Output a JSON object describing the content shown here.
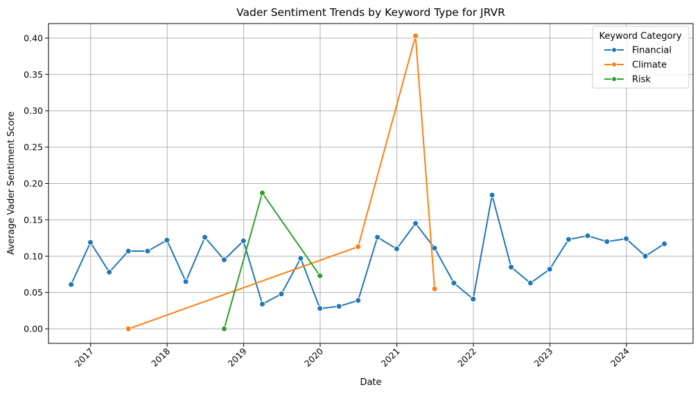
{
  "chart_data": {
    "type": "line",
    "title": "Vader Sentiment Trends by Keyword Type for JRVR",
    "xlabel": "Date",
    "ylabel": "Average Vader Sentiment Score",
    "xlim": [
      "2016-06-14",
      "2024-11-14"
    ],
    "ylim": [
      -0.02,
      0.42
    ],
    "x_ticks": [
      {
        "date": "2017-01-01",
        "label": "2017"
      },
      {
        "date": "2018-01-01",
        "label": "2018"
      },
      {
        "date": "2019-01-01",
        "label": "2019"
      },
      {
        "date": "2020-01-01",
        "label": "2020"
      },
      {
        "date": "2021-01-01",
        "label": "2021"
      },
      {
        "date": "2022-01-01",
        "label": "2022"
      },
      {
        "date": "2023-01-01",
        "label": "2023"
      },
      {
        "date": "2024-01-01",
        "label": "2024"
      }
    ],
    "y_ticks": [
      {
        "value": 0.0,
        "label": "0.00"
      },
      {
        "value": 0.05,
        "label": "0.05"
      },
      {
        "value": 0.1,
        "label": "0.10"
      },
      {
        "value": 0.15,
        "label": "0.15"
      },
      {
        "value": 0.2,
        "label": "0.20"
      },
      {
        "value": 0.25,
        "label": "0.25"
      },
      {
        "value": 0.3,
        "label": "0.30"
      },
      {
        "value": 0.35,
        "label": "0.35"
      },
      {
        "value": 0.4,
        "label": "0.40"
      }
    ],
    "grid": true,
    "legend": {
      "title": "Keyword Category",
      "position": "top-right"
    },
    "series": [
      {
        "name": "Financial",
        "color": "#1f77b4",
        "points": [
          {
            "x": "2016-09-30",
            "y": 0.061
          },
          {
            "x": "2016-12-31",
            "y": 0.119
          },
          {
            "x": "2017-03-31",
            "y": 0.078
          },
          {
            "x": "2017-06-30",
            "y": 0.107
          },
          {
            "x": "2017-09-30",
            "y": 0.107
          },
          {
            "x": "2017-12-31",
            "y": 0.122
          },
          {
            "x": "2018-03-31",
            "y": 0.065
          },
          {
            "x": "2018-06-30",
            "y": 0.126
          },
          {
            "x": "2018-09-30",
            "y": 0.095
          },
          {
            "x": "2018-12-31",
            "y": 0.121
          },
          {
            "x": "2019-03-31",
            "y": 0.034
          },
          {
            "x": "2019-06-30",
            "y": 0.048
          },
          {
            "x": "2019-09-30",
            "y": 0.097
          },
          {
            "x": "2019-12-31",
            "y": 0.028
          },
          {
            "x": "2020-03-31",
            "y": 0.031
          },
          {
            "x": "2020-06-30",
            "y": 0.039
          },
          {
            "x": "2020-09-30",
            "y": 0.126
          },
          {
            "x": "2020-12-31",
            "y": 0.11
          },
          {
            "x": "2021-03-31",
            "y": 0.145
          },
          {
            "x": "2021-06-30",
            "y": 0.111
          },
          {
            "x": "2021-09-30",
            "y": 0.063
          },
          {
            "x": "2021-12-31",
            "y": 0.041
          },
          {
            "x": "2022-03-31",
            "y": 0.184
          },
          {
            "x": "2022-06-30",
            "y": 0.085
          },
          {
            "x": "2022-09-30",
            "y": 0.063
          },
          {
            "x": "2022-12-31",
            "y": 0.082
          },
          {
            "x": "2023-03-31",
            "y": 0.123
          },
          {
            "x": "2023-06-30",
            "y": 0.128
          },
          {
            "x": "2023-09-30",
            "y": 0.12
          },
          {
            "x": "2023-12-31",
            "y": 0.124
          },
          {
            "x": "2024-03-31",
            "y": 0.1
          },
          {
            "x": "2024-06-30",
            "y": 0.117
          }
        ]
      },
      {
        "name": "Climate",
        "color": "#ff7f0e",
        "points": [
          {
            "x": "2017-06-30",
            "y": 0.0
          },
          {
            "x": "2020-06-30",
            "y": 0.113
          },
          {
            "x": "2021-03-31",
            "y": 0.403
          },
          {
            "x": "2021-06-30",
            "y": 0.055
          }
        ]
      },
      {
        "name": "Risk",
        "color": "#2ca02c",
        "points": [
          {
            "x": "2018-09-30",
            "y": 0.0
          },
          {
            "x": "2019-03-31",
            "y": 0.187
          },
          {
            "x": "2019-12-31",
            "y": 0.073
          }
        ]
      }
    ]
  }
}
